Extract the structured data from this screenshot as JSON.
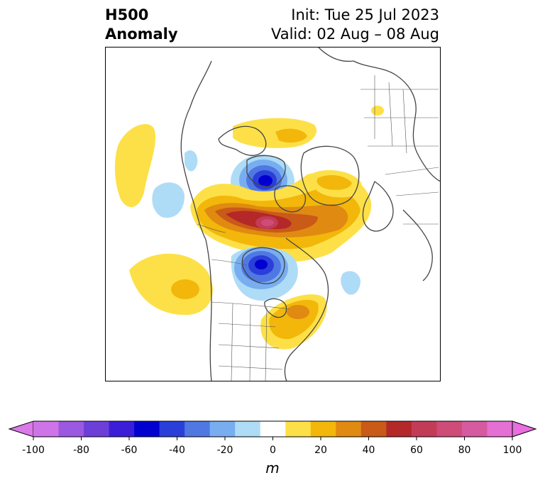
{
  "header": {
    "variable": "H500",
    "field": "Anomaly",
    "init": "Init: Tue 25 Jul 2023",
    "valid": "Valid: 02 Aug – 08 Aug"
  },
  "colorbar": {
    "unit": "m",
    "ticks": [
      "-100",
      "-80",
      "-60",
      "-40",
      "-20",
      "0",
      "20",
      "40",
      "60",
      "80",
      "100"
    ],
    "levels": [
      -100,
      -90,
      -80,
      -70,
      -60,
      -50,
      -40,
      -30,
      -20,
      -10,
      10,
      20,
      30,
      40,
      50,
      60,
      70,
      80,
      90,
      100
    ],
    "colors": [
      "#cf74e8",
      "#9b58e0",
      "#6d3fd9",
      "#3d1ed8",
      "#0000d0",
      "#2a3fd9",
      "#5078e3",
      "#78aef0",
      "#aedcf7",
      "#ffffff",
      "#fde047",
      "#f2b70a",
      "#e08a12",
      "#c95a17",
      "#b4282a",
      "#c23c58",
      "#cf4c78",
      "#d55aa0",
      "#e570d4"
    ],
    "under_color": "#d97ae8",
    "over_color": "#e96ee0"
  },
  "map": {
    "projection": "polar stereographic (North America / Arctic)",
    "anomalies": [
      {
        "sign": "positive",
        "region": "Canadian Arctic Archipelago / Baffin Bay",
        "peak_m": 70
      },
      {
        "sign": "positive",
        "region": "Greenland",
        "peak_m": 35
      },
      {
        "sign": "positive",
        "region": "Eastern North America",
        "peak_m": 35
      },
      {
        "sign": "positive",
        "region": "Northeast Pacific",
        "peak_m": 25
      },
      {
        "sign": "negative",
        "region": "Arctic Ocean north of Alaska",
        "peak_m": -60
      },
      {
        "sign": "negative",
        "region": "Hudson Bay",
        "peak_m": -60
      },
      {
        "sign": "negative",
        "region": "Northwest Atlantic",
        "peak_m": -15
      }
    ]
  }
}
